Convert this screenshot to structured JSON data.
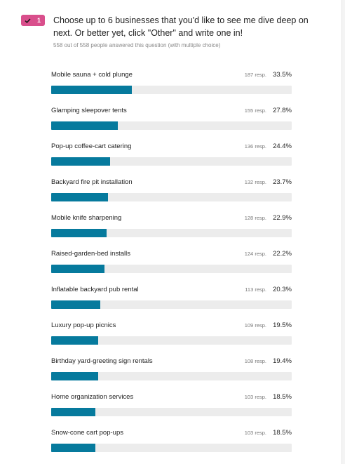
{
  "question": {
    "number": "1",
    "text": "Choose up to 6 businesses that you'd like to see me dive deep on next. Or better yet, click \"Other\" and write one in!",
    "meta": "558 out of 558 people answered this question (with multiple choice)",
    "badge_color": "#d94f8c",
    "bar_color": "#067a9d"
  },
  "options": [
    {
      "label": "Mobile sauna + cold plunge",
      "responses": "187 resp.",
      "percent": "33.5%",
      "fraction": 0.335
    },
    {
      "label": "Glamping sleepover tents",
      "responses": "155 resp.",
      "percent": "27.8%",
      "fraction": 0.278
    },
    {
      "label": "Pop-up coffee-cart catering",
      "responses": "136 resp.",
      "percent": "24.4%",
      "fraction": 0.244
    },
    {
      "label": "Backyard fire pit installation",
      "responses": "132 resp.",
      "percent": "23.7%",
      "fraction": 0.237
    },
    {
      "label": "Mobile knife sharpening",
      "responses": "128 resp.",
      "percent": "22.9%",
      "fraction": 0.229
    },
    {
      "label": "Raised-garden-bed installs",
      "responses": "124 resp.",
      "percent": "22.2%",
      "fraction": 0.222
    },
    {
      "label": "Inflatable backyard pub rental",
      "responses": "113 resp.",
      "percent": "20.3%",
      "fraction": 0.203
    },
    {
      "label": "Luxury pop-up picnics",
      "responses": "109 resp.",
      "percent": "19.5%",
      "fraction": 0.195
    },
    {
      "label": "Birthday yard-greeting sign rentals",
      "responses": "108 resp.",
      "percent": "19.4%",
      "fraction": 0.194
    },
    {
      "label": "Home organization services",
      "responses": "103 resp.",
      "percent": "18.5%",
      "fraction": 0.185
    },
    {
      "label": "Snow-cone cart pop-ups",
      "responses": "103 resp.",
      "percent": "18.5%",
      "fraction": 0.185
    }
  ]
}
